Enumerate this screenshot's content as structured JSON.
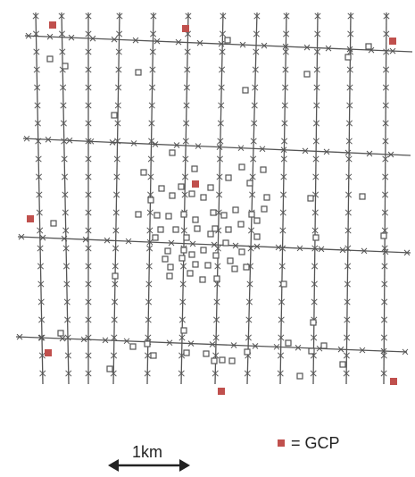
{
  "scale_bar": {
    "label": "1km"
  },
  "legend": {
    "label": "= GCP",
    "marker": "gcp-square"
  },
  "colors": {
    "gcp": "#c0504d",
    "flight_line": "#555555",
    "cross_marker": "#555555",
    "tie_point": "#555555",
    "background": "#ffffff"
  }
}
